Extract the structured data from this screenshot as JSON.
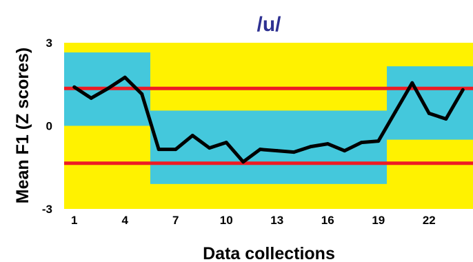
{
  "chart_data": {
    "type": "line",
    "title": "/u/",
    "xlabel": "Data collections",
    "ylabel": "Mean F1 (Z scores)",
    "xlim": [
      0.4,
      24.6
    ],
    "ylim": [
      -3,
      3
    ],
    "xticks": [
      1,
      4,
      7,
      10,
      13,
      16,
      19,
      22
    ],
    "yticks": [
      3,
      0,
      -3
    ],
    "grid": false,
    "legend": "none",
    "x": [
      1,
      2,
      3,
      4,
      5,
      6,
      7,
      8,
      9,
      10,
      11,
      12,
      13,
      14,
      15,
      16,
      17,
      18,
      19,
      20,
      21,
      22,
      23,
      24
    ],
    "series": [
      {
        "values": [
          1.4,
          1.0,
          1.35,
          1.75,
          1.15,
          -0.85,
          -0.85,
          -0.35,
          -0.8,
          -0.6,
          -1.3,
          -0.85,
          -0.9,
          -0.95,
          -0.75,
          -0.65,
          -0.9,
          -0.6,
          -0.55,
          0.5,
          1.55,
          0.45,
          0.25,
          1.3
        ]
      }
    ],
    "reference_lines": [
      1.35,
      -1.35
    ],
    "bands": [
      {
        "x_start": 0.4,
        "x_end": 5.5,
        "y_low": 0.0,
        "y_high": 2.65
      },
      {
        "x_start": 5.5,
        "x_end": 19.5,
        "y_low": -2.1,
        "y_high": 0.55
      },
      {
        "x_start": 19.5,
        "x_end": 24.6,
        "y_low": -0.5,
        "y_high": 2.15
      }
    ],
    "colors": {
      "plot_background": "#fff200",
      "band": "#44c8dc",
      "series_line": "#000000",
      "reference_line": "#ed1c24",
      "title": "#2e3192"
    }
  }
}
